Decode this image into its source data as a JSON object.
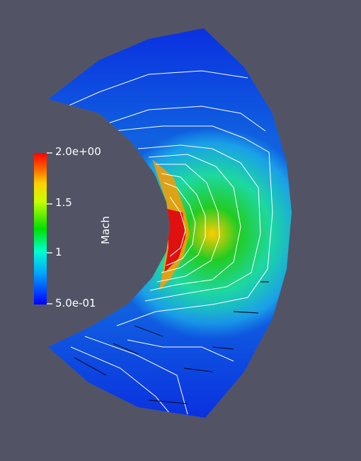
{
  "viewer": {
    "background_color": "#525466",
    "field": "Mach"
  },
  "color_legend": {
    "title": "Mach",
    "max_label": "2.0e+00",
    "mid_high_label": "1.5",
    "mid_label": "1",
    "min_label": "5.0e-01",
    "range": [
      0.5,
      2.0
    ],
    "colormap": [
      "#0000ff",
      "#00a0ff",
      "#00ffd0",
      "#00e000",
      "#ffff00",
      "#ff8000",
      "#ff0000"
    ]
  }
}
